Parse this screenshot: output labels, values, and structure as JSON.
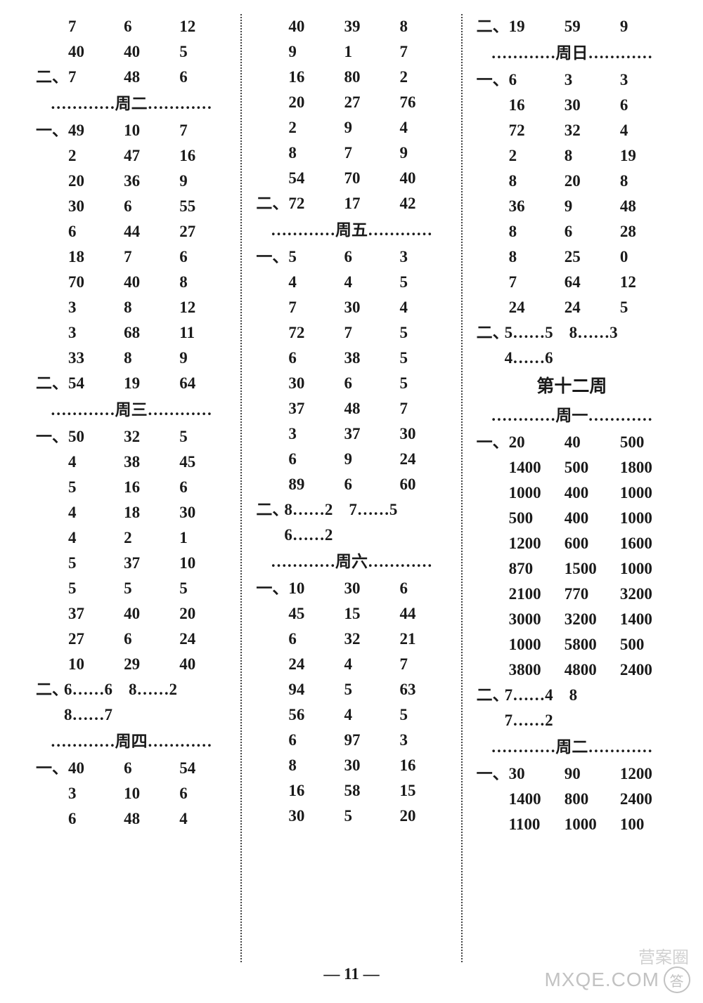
{
  "pageNumber": "— 11 —",
  "watermark_main": "MXQE.COM",
  "watermark_sub": "营案圈",
  "columns": [
    {
      "blocks": [
        {
          "type": "grid",
          "prefix": "",
          "rows": [
            [
              "7",
              "6",
              "12"
            ],
            [
              "40",
              "40",
              "5"
            ]
          ]
        },
        {
          "type": "grid",
          "prefix": "二、",
          "rows": [
            [
              "7",
              "48",
              "6"
            ]
          ]
        },
        {
          "type": "day",
          "label": "…………周二…………"
        },
        {
          "type": "grid",
          "prefix": "一、",
          "rows": [
            [
              "49",
              "10",
              "7"
            ],
            [
              "2",
              "47",
              "16"
            ],
            [
              "20",
              "36",
              "9"
            ],
            [
              "30",
              "6",
              "55"
            ],
            [
              "6",
              "44",
              "27"
            ],
            [
              "18",
              "7",
              "6"
            ],
            [
              "70",
              "40",
              "8"
            ],
            [
              "3",
              "8",
              "12"
            ],
            [
              "3",
              "68",
              "11"
            ],
            [
              "33",
              "8",
              "9"
            ]
          ]
        },
        {
          "type": "grid",
          "prefix": "二、",
          "rows": [
            [
              "54",
              "19",
              "64"
            ]
          ]
        },
        {
          "type": "day",
          "label": "…………周三…………"
        },
        {
          "type": "grid",
          "prefix": "一、",
          "rows": [
            [
              "50",
              "32",
              "5"
            ],
            [
              "4",
              "38",
              "45"
            ],
            [
              "5",
              "16",
              "6"
            ],
            [
              "4",
              "18",
              "30"
            ],
            [
              "4",
              "2",
              "1"
            ],
            [
              "5",
              "37",
              "10"
            ],
            [
              "5",
              "5",
              "5"
            ],
            [
              "37",
              "40",
              "20"
            ],
            [
              "27",
              "6",
              "24"
            ],
            [
              "10",
              "29",
              "40"
            ]
          ]
        },
        {
          "type": "textpref",
          "prefix": "二、",
          "text": "6……6　8……2"
        },
        {
          "type": "text",
          "text": "8……7"
        },
        {
          "type": "day",
          "label": "…………周四…………"
        },
        {
          "type": "grid",
          "prefix": "一、",
          "rows": [
            [
              "40",
              "6",
              "54"
            ],
            [
              "3",
              "10",
              "6"
            ],
            [
              "6",
              "48",
              "4"
            ]
          ]
        }
      ]
    },
    {
      "blocks": [
        {
          "type": "grid",
          "prefix": "",
          "rows": [
            [
              "40",
              "39",
              "8"
            ],
            [
              "9",
              "1",
              "7"
            ],
            [
              "16",
              "80",
              "2"
            ],
            [
              "20",
              "27",
              "76"
            ],
            [
              "2",
              "9",
              "4"
            ],
            [
              "8",
              "7",
              "9"
            ],
            [
              "54",
              "70",
              "40"
            ]
          ]
        },
        {
          "type": "grid",
          "prefix": "二、",
          "rows": [
            [
              "72",
              "17",
              "42"
            ]
          ]
        },
        {
          "type": "day",
          "label": "…………周五…………"
        },
        {
          "type": "grid",
          "prefix": "一、",
          "rows": [
            [
              "5",
              "6",
              "3"
            ],
            [
              "4",
              "4",
              "5"
            ],
            [
              "7",
              "30",
              "4"
            ],
            [
              "72",
              "7",
              "5"
            ],
            [
              "6",
              "38",
              "5"
            ],
            [
              "30",
              "6",
              "5"
            ],
            [
              "37",
              "48",
              "7"
            ],
            [
              "3",
              "37",
              "30"
            ],
            [
              "6",
              "9",
              "24"
            ],
            [
              "89",
              "6",
              "60"
            ]
          ]
        },
        {
          "type": "textpref",
          "prefix": "二、",
          "text": "8……2　7……5"
        },
        {
          "type": "text",
          "text": "6……2"
        },
        {
          "type": "day",
          "label": "…………周六…………"
        },
        {
          "type": "grid",
          "prefix": "一、",
          "rows": [
            [
              "10",
              "30",
              "6"
            ],
            [
              "45",
              "15",
              "44"
            ],
            [
              "6",
              "32",
              "21"
            ],
            [
              "24",
              "4",
              "7"
            ],
            [
              "94",
              "5",
              "63"
            ],
            [
              "56",
              "4",
              "5"
            ],
            [
              "6",
              "97",
              "3"
            ],
            [
              "8",
              "30",
              "16"
            ],
            [
              "16",
              "58",
              "15"
            ],
            [
              "30",
              "5",
              "20"
            ]
          ]
        }
      ]
    },
    {
      "blocks": [
        {
          "type": "grid",
          "prefix": "二、",
          "rows": [
            [
              "19",
              "59",
              "9"
            ]
          ]
        },
        {
          "type": "day",
          "label": "…………周日…………"
        },
        {
          "type": "grid",
          "prefix": "一、",
          "rows": [
            [
              "6",
              "3",
              "3"
            ],
            [
              "16",
              "30",
              "6"
            ],
            [
              "72",
              "32",
              "4"
            ],
            [
              "2",
              "8",
              "19"
            ],
            [
              "8",
              "20",
              "8"
            ],
            [
              "36",
              "9",
              "48"
            ],
            [
              "8",
              "6",
              "28"
            ],
            [
              "8",
              "25",
              "0"
            ],
            [
              "7",
              "64",
              "12"
            ],
            [
              "24",
              "24",
              "5"
            ]
          ]
        },
        {
          "type": "textpref",
          "prefix": "二、",
          "text": "5……5　8……3"
        },
        {
          "type": "text",
          "text": "4……6"
        },
        {
          "type": "week",
          "label": "第十二周"
        },
        {
          "type": "day",
          "label": "…………周一…………"
        },
        {
          "type": "grid",
          "prefix": "一、",
          "rows": [
            [
              "20",
              "40",
              "500"
            ],
            [
              "1400",
              "500",
              "1800"
            ],
            [
              "1000",
              "400",
              "1000"
            ],
            [
              "500",
              "400",
              "1000"
            ],
            [
              "1200",
              "600",
              "1600"
            ],
            [
              "870",
              "1500",
              "1000"
            ],
            [
              "2100",
              "770",
              "3200"
            ],
            [
              "3000",
              "3200",
              "1400"
            ],
            [
              "1000",
              "5800",
              "500"
            ],
            [
              "3800",
              "4800",
              "2400"
            ]
          ]
        },
        {
          "type": "textpref",
          "prefix": "二、",
          "text": "7……4　8"
        },
        {
          "type": "text",
          "text": "7……2"
        },
        {
          "type": "day",
          "label": "…………周二…………"
        },
        {
          "type": "grid",
          "prefix": "一、",
          "rows": [
            [
              "30",
              "90",
              "1200"
            ],
            [
              "1400",
              "800",
              "2400"
            ],
            [
              "1100",
              "1000",
              "100"
            ]
          ]
        }
      ]
    }
  ]
}
